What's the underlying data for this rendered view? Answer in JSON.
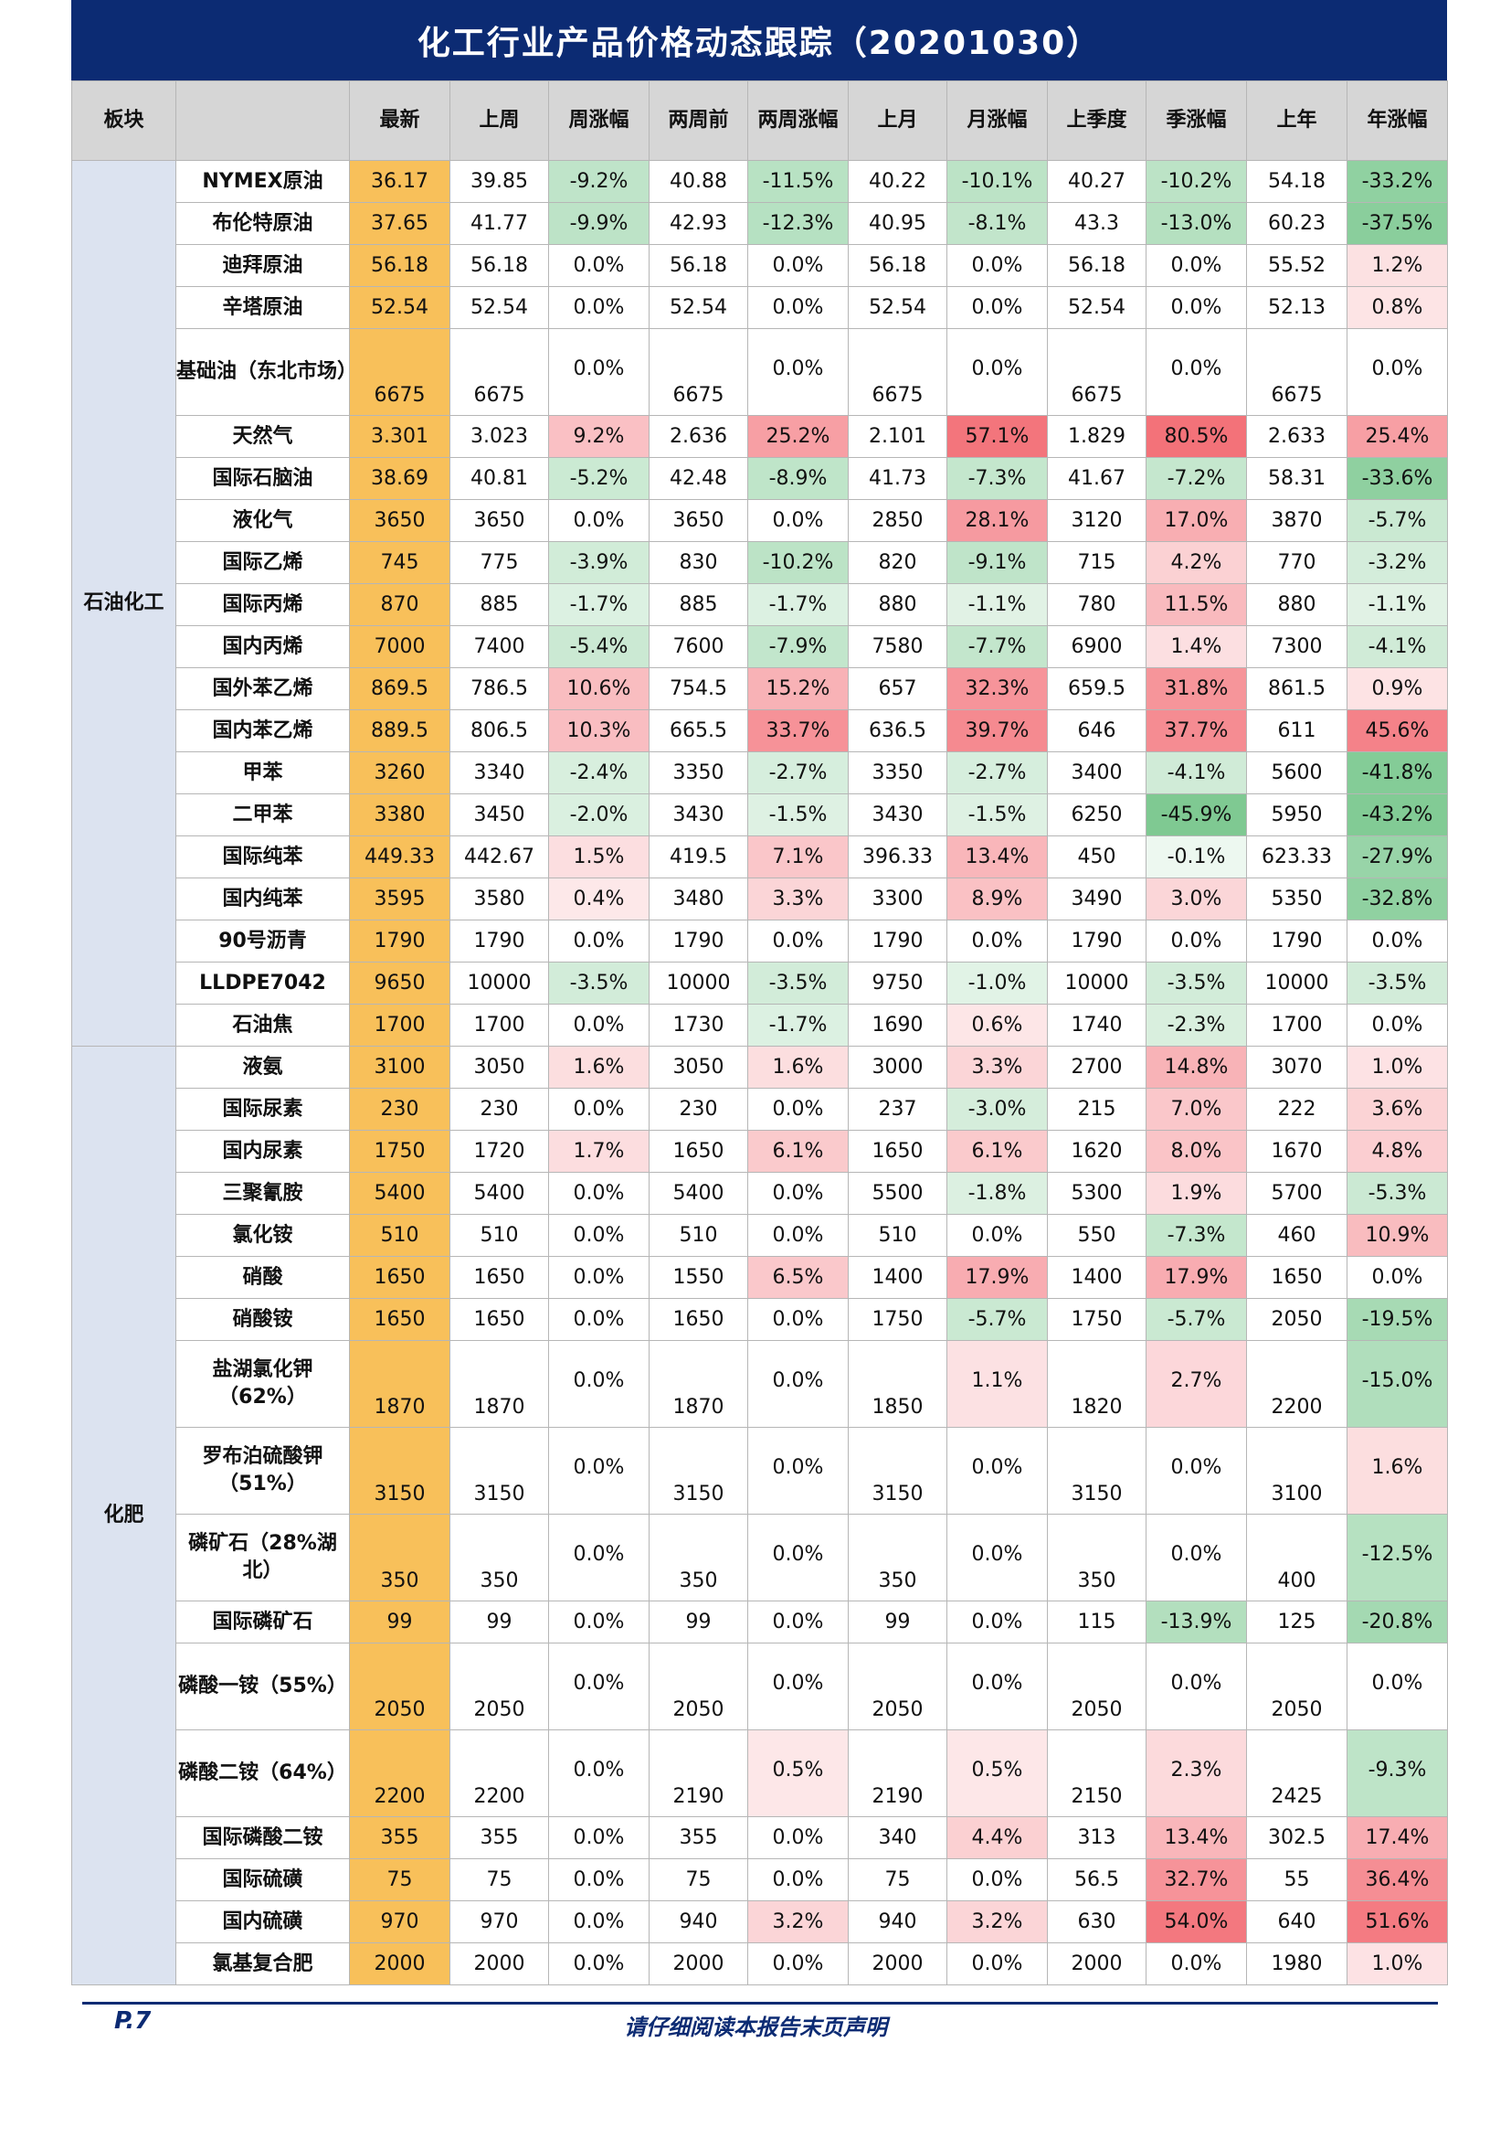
{
  "title": "化工行业产品价格动态跟踪（20201030）",
  "headers": [
    "板块",
    "",
    "最新",
    "上周",
    "周涨幅",
    "两周前",
    "两周涨幅",
    "上月",
    "月涨幅",
    "上季度",
    "季涨幅",
    "上年",
    "年涨幅"
  ],
  "sectors": [
    {
      "name": "石油化工",
      "rows": [
        [
          "NYMEX原油",
          "36.17",
          "39.85",
          "-9.2%",
          "40.88",
          "-11.5%",
          "40.22",
          "-10.1%",
          "40.27",
          "-10.2%",
          "54.18",
          "-33.2%"
        ],
        [
          "布伦特原油",
          "37.65",
          "41.77",
          "-9.9%",
          "42.93",
          "-12.3%",
          "40.95",
          "-8.1%",
          "43.3",
          "-13.0%",
          "60.23",
          "-37.5%"
        ],
        [
          "迪拜原油",
          "56.18",
          "56.18",
          "0.0%",
          "56.18",
          "0.0%",
          "56.18",
          "0.0%",
          "56.18",
          "0.0%",
          "55.52",
          "1.2%"
        ],
        [
          "辛塔原油",
          "52.54",
          "52.54",
          "0.0%",
          "52.54",
          "0.0%",
          "52.54",
          "0.0%",
          "52.54",
          "0.0%",
          "52.13",
          "0.8%"
        ],
        [
          "基础油（东北市场）",
          "6675",
          "6675",
          "0.0%",
          "6675",
          "0.0%",
          "6675",
          "0.0%",
          "6675",
          "0.0%",
          "6675",
          "0.0%"
        ],
        [
          "天然气",
          "3.301",
          "3.023",
          "9.2%",
          "2.636",
          "25.2%",
          "2.101",
          "57.1%",
          "1.829",
          "80.5%",
          "2.633",
          "25.4%"
        ],
        [
          "国际石脑油",
          "38.69",
          "40.81",
          "-5.2%",
          "42.48",
          "-8.9%",
          "41.73",
          "-7.3%",
          "41.67",
          "-7.2%",
          "58.31",
          "-33.6%"
        ],
        [
          "液化气",
          "3650",
          "3650",
          "0.0%",
          "3650",
          "0.0%",
          "2850",
          "28.1%",
          "3120",
          "17.0%",
          "3870",
          "-5.7%"
        ],
        [
          "国际乙烯",
          "745",
          "775",
          "-3.9%",
          "830",
          "-10.2%",
          "820",
          "-9.1%",
          "715",
          "4.2%",
          "770",
          "-3.2%"
        ],
        [
          "国际丙烯",
          "870",
          "885",
          "-1.7%",
          "885",
          "-1.7%",
          "880",
          "-1.1%",
          "780",
          "11.5%",
          "880",
          "-1.1%"
        ],
        [
          "国内丙烯",
          "7000",
          "7400",
          "-5.4%",
          "7600",
          "-7.9%",
          "7580",
          "-7.7%",
          "6900",
          "1.4%",
          "7300",
          "-4.1%"
        ],
        [
          "国外苯乙烯",
          "869.5",
          "786.5",
          "10.6%",
          "754.5",
          "15.2%",
          "657",
          "32.3%",
          "659.5",
          "31.8%",
          "861.5",
          "0.9%"
        ],
        [
          "国内苯乙烯",
          "889.5",
          "806.5",
          "10.3%",
          "665.5",
          "33.7%",
          "636.5",
          "39.7%",
          "646",
          "37.7%",
          "611",
          "45.6%"
        ],
        [
          "甲苯",
          "3260",
          "3340",
          "-2.4%",
          "3350",
          "-2.7%",
          "3350",
          "-2.7%",
          "3400",
          "-4.1%",
          "5600",
          "-41.8%"
        ],
        [
          "二甲苯",
          "3380",
          "3450",
          "-2.0%",
          "3430",
          "-1.5%",
          "3430",
          "-1.5%",
          "6250",
          "-45.9%",
          "5950",
          "-43.2%"
        ],
        [
          "国际纯苯",
          "449.33",
          "442.67",
          "1.5%",
          "419.5",
          "7.1%",
          "396.33",
          "13.4%",
          "450",
          "-0.1%",
          "623.33",
          "-27.9%"
        ],
        [
          "国内纯苯",
          "3595",
          "3580",
          "0.4%",
          "3480",
          "3.3%",
          "3300",
          "8.9%",
          "3490",
          "3.0%",
          "5350",
          "-32.8%"
        ],
        [
          "90号沥青",
          "1790",
          "1790",
          "0.0%",
          "1790",
          "0.0%",
          "1790",
          "0.0%",
          "1790",
          "0.0%",
          "1790",
          "0.0%"
        ],
        [
          "LLDPE7042",
          "9650",
          "10000",
          "-3.5%",
          "10000",
          "-3.5%",
          "9750",
          "-1.0%",
          "10000",
          "-3.5%",
          "10000",
          "-3.5%"
        ],
        [
          "石油焦",
          "1700",
          "1700",
          "0.0%",
          "1730",
          "-1.7%",
          "1690",
          "0.6%",
          "1740",
          "-2.3%",
          "1700",
          "0.0%"
        ]
      ]
    },
    {
      "name": "化肥",
      "rows": [
        [
          "液氨",
          "3100",
          "3050",
          "1.6%",
          "3050",
          "1.6%",
          "3000",
          "3.3%",
          "2700",
          "14.8%",
          "3070",
          "1.0%"
        ],
        [
          "国际尿素",
          "230",
          "230",
          "0.0%",
          "230",
          "0.0%",
          "237",
          "-3.0%",
          "215",
          "7.0%",
          "222",
          "3.6%"
        ],
        [
          "国内尿素",
          "1750",
          "1720",
          "1.7%",
          "1650",
          "6.1%",
          "1650",
          "6.1%",
          "1620",
          "8.0%",
          "1670",
          "4.8%"
        ],
        [
          "三聚氰胺",
          "5400",
          "5400",
          "0.0%",
          "5400",
          "0.0%",
          "5500",
          "-1.8%",
          "5300",
          "1.9%",
          "5700",
          "-5.3%"
        ],
        [
          "氯化铵",
          "510",
          "510",
          "0.0%",
          "510",
          "0.0%",
          "510",
          "0.0%",
          "550",
          "-7.3%",
          "460",
          "10.9%"
        ],
        [
          "硝酸",
          "1650",
          "1650",
          "0.0%",
          "1550",
          "6.5%",
          "1400",
          "17.9%",
          "1400",
          "17.9%",
          "1650",
          "0.0%"
        ],
        [
          "硝酸铵",
          "1650",
          "1650",
          "0.0%",
          "1650",
          "0.0%",
          "1750",
          "-5.7%",
          "1750",
          "-5.7%",
          "2050",
          "-19.5%"
        ],
        [
          "盐湖氯化钾（62%）",
          "1870",
          "1870",
          "0.0%",
          "1870",
          "0.0%",
          "1850",
          "1.1%",
          "1820",
          "2.7%",
          "2200",
          "-15.0%"
        ],
        [
          "罗布泊硫酸钾（51%）",
          "3150",
          "3150",
          "0.0%",
          "3150",
          "0.0%",
          "3150",
          "0.0%",
          "3150",
          "0.0%",
          "3100",
          "1.6%"
        ],
        [
          "磷矿石（28%湖北）",
          "350",
          "350",
          "0.0%",
          "350",
          "0.0%",
          "350",
          "0.0%",
          "350",
          "0.0%",
          "400",
          "-12.5%"
        ],
        [
          "国际磷矿石",
          "99",
          "99",
          "0.0%",
          "99",
          "0.0%",
          "99",
          "0.0%",
          "115",
          "-13.9%",
          "125",
          "-20.8%"
        ],
        [
          "磷酸一铵（55%）",
          "2050",
          "2050",
          "0.0%",
          "2050",
          "0.0%",
          "2050",
          "0.0%",
          "2050",
          "0.0%",
          "2050",
          "0.0%"
        ],
        [
          "磷酸二铵（64%）",
          "2200",
          "2200",
          "0.0%",
          "2190",
          "0.5%",
          "2190",
          "0.5%",
          "2150",
          "2.3%",
          "2425",
          "-9.3%"
        ],
        [
          "国际磷酸二铵",
          "355",
          "355",
          "0.0%",
          "355",
          "0.0%",
          "340",
          "4.4%",
          "313",
          "13.4%",
          "302.5",
          "17.4%"
        ],
        [
          "国际硫磺",
          "75",
          "75",
          "0.0%",
          "75",
          "0.0%",
          "75",
          "0.0%",
          "56.5",
          "32.7%",
          "55",
          "36.4%"
        ],
        [
          "国内硫磺",
          "970",
          "970",
          "0.0%",
          "940",
          "3.2%",
          "940",
          "3.2%",
          "630",
          "54.0%",
          "640",
          "51.6%"
        ],
        [
          "氯基复合肥",
          "2000",
          "2000",
          "0.0%",
          "2000",
          "0.0%",
          "2000",
          "0.0%",
          "2000",
          "0.0%",
          "1980",
          "1.0%"
        ]
      ]
    }
  ],
  "footer": {
    "page": "P.7",
    "disclaimer": "请仔细阅读本报告末页声明"
  },
  "colors": {
    "header_bg": "#0c2b73",
    "latest_bg": "#f8c05a",
    "sector_bg": "#dce3f0",
    "up": "#f2676f",
    "down": "#63be7b"
  }
}
